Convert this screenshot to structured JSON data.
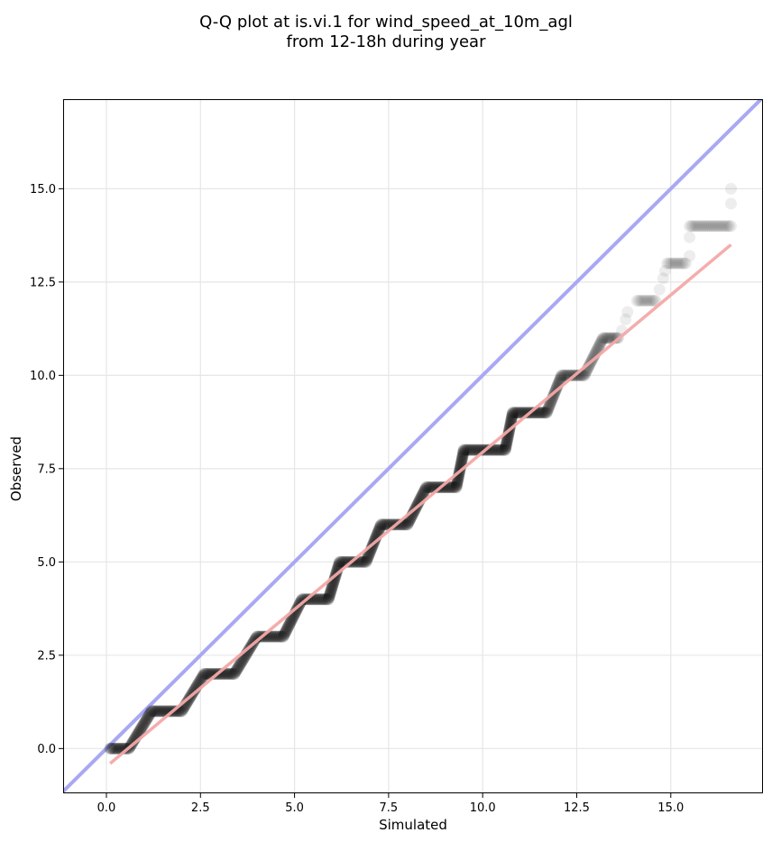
{
  "chart_data": {
    "type": "scatter",
    "title_line1": "Q-Q plot at is.vi.1 for wind_speed_at_10m_agl",
    "title_line2": "from 12-18h during year",
    "xlabel": "Simulated",
    "ylabel": "Observed",
    "xlim": [
      -1.15,
      17.45
    ],
    "ylim": [
      -1.2,
      17.4
    ],
    "xticks": [
      0.0,
      2.5,
      5.0,
      7.5,
      10.0,
      12.5,
      15.0
    ],
    "xtick_labels": [
      "0.0",
      "2.5",
      "5.0",
      "7.5",
      "10.0",
      "12.5",
      "15.0"
    ],
    "yticks": [
      0.0,
      2.5,
      5.0,
      7.5,
      10.0,
      12.5,
      15.0
    ],
    "ytick_labels": [
      "0.0",
      "2.5",
      "5.0",
      "7.5",
      "10.0",
      "12.5",
      "15.0"
    ],
    "grid": true,
    "colors": {
      "points": "#000000",
      "identity_line": "#a8a8f4",
      "fit_line": "#f4a8a8"
    },
    "identity_line": {
      "slope": 1,
      "intercept": 0
    },
    "fit_line": {
      "x": [
        0.1,
        16.6
      ],
      "y": [
        -0.4,
        13.5
      ]
    },
    "steps": [
      {
        "y": 0,
        "x_start": 0.1,
        "x_end": 0.6
      },
      {
        "y": 1,
        "x_start": 1.2,
        "x_end": 2.0
      },
      {
        "y": 2,
        "x_start": 2.6,
        "x_end": 3.4
      },
      {
        "y": 3,
        "x_start": 4.0,
        "x_end": 4.7
      },
      {
        "y": 4,
        "x_start": 5.2,
        "x_end": 5.9
      },
      {
        "y": 5,
        "x_start": 6.2,
        "x_end": 6.9
      },
      {
        "y": 6,
        "x_start": 7.3,
        "x_end": 8.0
      },
      {
        "y": 7,
        "x_start": 8.5,
        "x_end": 9.3
      },
      {
        "y": 8,
        "x_start": 9.5,
        "x_end": 10.6
      },
      {
        "y": 9,
        "x_start": 10.8,
        "x_end": 11.7
      },
      {
        "y": 10,
        "x_start": 12.1,
        "x_end": 12.7
      },
      {
        "y": 11,
        "x_start": 13.2,
        "x_end": 13.6
      },
      {
        "y": 12,
        "x_start": 14.1,
        "x_end": 14.6
      },
      {
        "y": 13,
        "x_start": 14.9,
        "x_end": 15.4
      },
      {
        "y": 14,
        "x_start": 15.5,
        "x_end": 16.6
      }
    ],
    "extra_points": [
      {
        "x": 13.7,
        "y": 11.2
      },
      {
        "x": 13.8,
        "y": 11.5
      },
      {
        "x": 13.85,
        "y": 11.7
      },
      {
        "x": 14.7,
        "y": 12.3
      },
      {
        "x": 14.8,
        "y": 12.6
      },
      {
        "x": 14.85,
        "y": 12.8
      },
      {
        "x": 15.5,
        "y": 13.2
      },
      {
        "x": 15.5,
        "y": 13.7
      },
      {
        "x": 16.6,
        "y": 14.6
      },
      {
        "x": 16.6,
        "y": 15.0
      }
    ]
  }
}
